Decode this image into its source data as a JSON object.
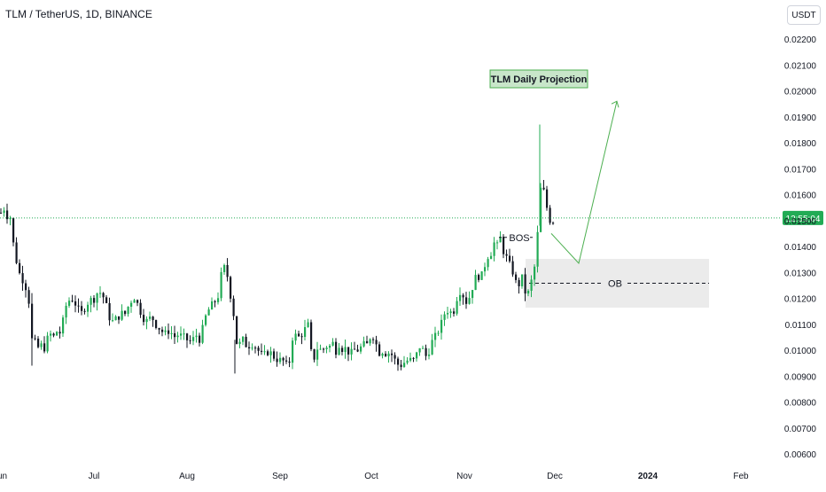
{
  "header": {
    "symbol_title": "TLM / TetherUS, 1D, BINANCE",
    "currency": "USDT"
  },
  "price_label": {
    "text": "12:55:04",
    "color": "#22ab55"
  },
  "colors": {
    "up": "#22ab55",
    "down": "#131722",
    "projection": "#4caf50",
    "ob_zone": "#ebebeb"
  },
  "annotations": {
    "projection_label": "TLM Daily Projection",
    "bos_label": "BOS",
    "ob_label": "OB"
  },
  "chart_data": {
    "type": "candlestick",
    "title": "TLM / TetherUS, 1D, BINANCE",
    "ylim": [
      0.006,
      0.0225
    ],
    "y_ticks": [
      "0.00600",
      "0.00700",
      "0.00800",
      "0.00900",
      "0.01000",
      "0.01100",
      "0.01200",
      "0.01300",
      "0.01400",
      "0.01500",
      "0.01600",
      "0.01700",
      "0.01800",
      "0.01900",
      "0.02000",
      "0.02100",
      "0.02200"
    ],
    "x_ticks": [
      "Jun",
      "Jul",
      "Aug",
      "Sep",
      "Oct",
      "Nov",
      "Dec",
      "2024",
      "Feb"
    ],
    "grid": false,
    "current_price_line": 0.0151,
    "bos_level": 0.01435,
    "ob_zone": {
      "top": 0.01352,
      "bottom": 0.01164,
      "mid": 0.01258
    },
    "projection_path": [
      [
        0.0145,
        0.01335
      ],
      [
        0.01335,
        0.0196
      ]
    ],
    "close_path": [
      [
        0,
        0.0153
      ],
      [
        2,
        0.0151
      ],
      [
        4,
        0.0156
      ],
      [
        5,
        0.0152
      ],
      [
        6,
        0.0153
      ],
      [
        8,
        0.0151
      ],
      [
        10,
        0.0152
      ],
      [
        12,
        0.0149
      ],
      [
        15,
        0.0137
      ],
      [
        18,
        0.0134
      ],
      [
        22,
        0.0128
      ],
      [
        26,
        0.0127
      ],
      [
        30,
        0.0122
      ],
      [
        33,
        0.0116
      ],
      [
        35,
        0.0104
      ],
      [
        38,
        0.0103
      ],
      [
        42,
        0.0101
      ],
      [
        45,
        0.0102
      ],
      [
        48,
        0.01
      ],
      [
        52,
        0.0104
      ],
      [
        56,
        0.0106
      ],
      [
        60,
        0.0105
      ],
      [
        64,
        0.0108
      ],
      [
        68,
        0.0106
      ],
      [
        72,
        0.0116
      ],
      [
        76,
        0.0119
      ],
      [
        80,
        0.012
      ],
      [
        84,
        0.0118
      ],
      [
        88,
        0.0115
      ],
      [
        92,
        0.0114
      ],
      [
        96,
        0.0118
      ],
      [
        100,
        0.0119
      ],
      [
        105,
        0.012
      ],
      [
        110,
        0.0123
      ],
      [
        115,
        0.0121
      ],
      [
        118,
        0.0118
      ],
      [
        122,
        0.0113
      ],
      [
        126,
        0.0111
      ],
      [
        130,
        0.0112
      ],
      [
        135,
        0.0114
      ],
      [
        140,
        0.0114
      ],
      [
        145,
        0.0118
      ],
      [
        150,
        0.0121
      ],
      [
        155,
        0.0117
      ],
      [
        160,
        0.0113
      ],
      [
        165,
        0.0111
      ],
      [
        170,
        0.0113
      ],
      [
        175,
        0.011
      ],
      [
        180,
        0.0108
      ],
      [
        185,
        0.0106
      ],
      [
        190,
        0.0108
      ],
      [
        195,
        0.0105
      ],
      [
        200,
        0.0106
      ],
      [
        205,
        0.0105
      ],
      [
        210,
        0.0104
      ],
      [
        215,
        0.0103
      ],
      [
        220,
        0.0106
      ],
      [
        225,
        0.0104
      ],
      [
        230,
        0.0112
      ],
      [
        235,
        0.0116
      ],
      [
        240,
        0.0118
      ],
      [
        245,
        0.0121
      ],
      [
        248,
        0.0128
      ],
      [
        251,
        0.0132
      ],
      [
        254,
        0.0131
      ],
      [
        257,
        0.0126
      ],
      [
        260,
        0.0119
      ],
      [
        264,
        0.0111
      ],
      [
        267,
        0.0099
      ],
      [
        270,
        0.0103
      ],
      [
        274,
        0.0104
      ],
      [
        278,
        0.0101
      ],
      [
        282,
        0.0103
      ],
      [
        286,
        0.0102
      ],
      [
        290,
        0.01
      ],
      [
        294,
        0.0098
      ],
      [
        298,
        0.0098
      ],
      [
        302,
        0.01
      ],
      [
        306,
        0.0098
      ],
      [
        310,
        0.0097
      ],
      [
        314,
        0.0096
      ],
      [
        318,
        0.0096
      ],
      [
        322,
        0.0094
      ],
      [
        326,
        0.0096
      ],
      [
        330,
        0.0108
      ],
      [
        334,
        0.0104
      ],
      [
        338,
        0.0106
      ],
      [
        342,
        0.0107
      ],
      [
        346,
        0.0111
      ],
      [
        350,
        0.0099
      ],
      [
        354,
        0.0097
      ],
      [
        358,
        0.0102
      ],
      [
        362,
        0.0099
      ],
      [
        366,
        0.0102
      ],
      [
        370,
        0.0101
      ],
      [
        374,
        0.0103
      ],
      [
        378,
        0.01
      ],
      [
        382,
        0.0103
      ],
      [
        386,
        0.01
      ],
      [
        390,
        0.0101
      ],
      [
        394,
        0.0098
      ],
      [
        398,
        0.01
      ],
      [
        402,
        0.01
      ],
      [
        406,
        0.0101
      ],
      [
        410,
        0.0102
      ],
      [
        414,
        0.0102
      ],
      [
        418,
        0.0107
      ],
      [
        422,
        0.0104
      ],
      [
        426,
        0.0099
      ],
      [
        430,
        0.01
      ],
      [
        434,
        0.0099
      ],
      [
        438,
        0.0099
      ],
      [
        442,
        0.0098
      ],
      [
        446,
        0.0095
      ],
      [
        450,
        0.0094
      ],
      [
        454,
        0.0095
      ],
      [
        458,
        0.0096
      ],
      [
        462,
        0.0096
      ],
      [
        466,
        0.0096
      ],
      [
        470,
        0.0099
      ],
      [
        474,
        0.0103
      ],
      [
        478,
        0.0097
      ],
      [
        482,
        0.0099
      ],
      [
        486,
        0.0103
      ],
      [
        490,
        0.0105
      ],
      [
        494,
        0.0108
      ],
      [
        498,
        0.0111
      ],
      [
        502,
        0.0116
      ],
      [
        506,
        0.0115
      ],
      [
        510,
        0.0114
      ],
      [
        514,
        0.012
      ],
      [
        518,
        0.0123
      ],
      [
        522,
        0.0121
      ],
      [
        526,
        0.0118
      ],
      [
        530,
        0.0122
      ],
      [
        534,
        0.0127
      ],
      [
        538,
        0.0129
      ],
      [
        542,
        0.0128
      ],
      [
        546,
        0.0133
      ],
      [
        550,
        0.0137
      ],
      [
        554,
        0.0138
      ],
      [
        557,
        0.0142
      ],
      [
        560,
        0.014
      ],
      [
        563,
        0.0144
      ],
      [
        566,
        0.0139
      ],
      [
        569,
        0.0137
      ],
      [
        572,
        0.0134
      ],
      [
        575,
        0.0132
      ],
      [
        578,
        0.013
      ],
      [
        581,
        0.0126
      ],
      [
        584,
        0.0125
      ],
      [
        587,
        0.0128
      ],
      [
        590,
        0.0127
      ],
      [
        593,
        0.0118
      ],
      [
        596,
        0.0124
      ],
      [
        599,
        0.0127
      ],
      [
        602,
        0.0132
      ],
      [
        605,
        0.0142
      ],
      [
        608,
        0.0158
      ],
      [
        610,
        0.0166
      ],
      [
        613,
        0.016
      ],
      [
        616,
        0.0155
      ],
      [
        619,
        0.015
      ],
      [
        622,
        0.0152
      ],
      [
        625,
        0.0145
      ]
    ]
  }
}
